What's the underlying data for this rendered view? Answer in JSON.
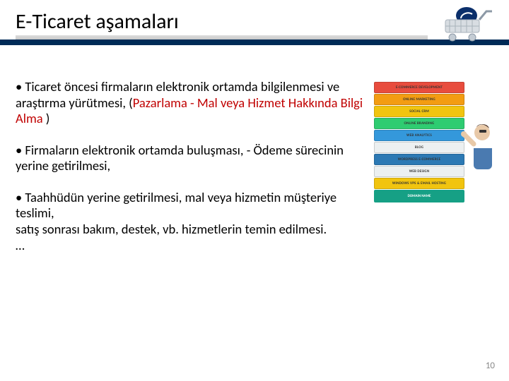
{
  "title": "E-Ticaret aşamaları",
  "bullets": {
    "b1_pre": "• Ticaret öncesi firmaların elektronik ortamda bilgilenmesi ve araştırma yürütmesi, (",
    "b1_hl": "Pazarlama - Mal veya Hizmet Hakkında Bilgi Alma",
    "b1_post": " )",
    "b2": "• Firmaların elektronik ortamda buluşması, - Ödeme sürecinin yerine getirilmesi,",
    "b3": "• Taahhüdün yerine getirilmesi, mal veya hizmetin müşteriye teslimi,\n satış sonrası bakım, destek, vb. hizmetlerin temin edilmesi.\n…"
  },
  "stack": {
    "layers": [
      {
        "label": "E-COMMERCE DEVELOPMENT",
        "bg": "#e84c3d"
      },
      {
        "label": "ONLINE MARKETING",
        "bg": "#f39c12"
      },
      {
        "label": "SOCIAL CRM",
        "bg": "#f1c40f"
      },
      {
        "label": "ONLINE BRANDING",
        "bg": "#2ecc71"
      },
      {
        "label": "WEB ANALYTICS",
        "bg": "#3498db"
      },
      {
        "label": "BLOG",
        "bg": "#ecf0f1"
      },
      {
        "label": "WORDPRESS E-COMMERCE",
        "bg": "#2c79b4"
      },
      {
        "label": "WEB DESIGN",
        "bg": "#ecf0f1"
      },
      {
        "label": "WINDOWS VPS & EMAIL HOSTING",
        "bg": "#f1c40f"
      }
    ],
    "base": {
      "label": "DOMAIN NAME",
      "bg": "#16a085"
    }
  },
  "colors": {
    "header_bar": "#002b57",
    "highlight": "#c00000",
    "page_num": "#8a8a8a"
  },
  "page_number": "10"
}
